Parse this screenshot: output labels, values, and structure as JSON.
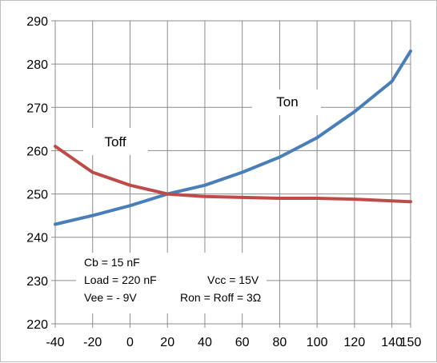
{
  "chart_data": {
    "type": "line",
    "title": "",
    "xlabel": "",
    "ylabel": "",
    "xlim": [
      -40,
      150
    ],
    "ylim": [
      220,
      290
    ],
    "x_ticks": [
      -40,
      -20,
      0,
      20,
      40,
      60,
      80,
      100,
      120,
      140,
      150
    ],
    "y_ticks": [
      220,
      230,
      240,
      250,
      260,
      270,
      280,
      290
    ],
    "grid": true,
    "legend": "none",
    "series": [
      {
        "name": "Ton",
        "color": "#4a7ebb",
        "x": [
          -40,
          -20,
          0,
          20,
          40,
          60,
          80,
          100,
          120,
          140,
          150
        ],
        "y": [
          243,
          245,
          247.3,
          250,
          252,
          255,
          258.5,
          263,
          269,
          276,
          283
        ]
      },
      {
        "name": "Toff",
        "color": "#be4b48",
        "x": [
          -40,
          -20,
          0,
          20,
          40,
          60,
          80,
          100,
          120,
          140,
          150
        ],
        "y": [
          261,
          255,
          252,
          250,
          249.4,
          249.2,
          249,
          249,
          248.8,
          248.4,
          248.2
        ]
      }
    ],
    "annotations": [
      "Cb =  15 nF",
      "Load = 220 nF",
      "Vcc = 15V",
      "Vee = - 9V",
      "Ron = Roff = 3Ω"
    ]
  }
}
